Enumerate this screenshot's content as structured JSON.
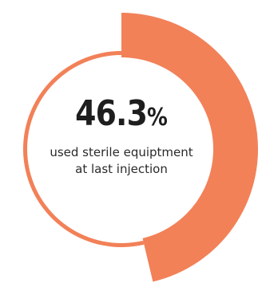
{
  "chart_data": {
    "type": "pie",
    "values": [
      46.3,
      53.7
    ],
    "value_label": "46.3",
    "unit": "%",
    "caption": "used sterile equiptment at last injection",
    "colors": {
      "highlight": "#f28158",
      "remainder_ring": "#f28158",
      "background": "#ffffff",
      "text": "#1e1e1e"
    }
  }
}
